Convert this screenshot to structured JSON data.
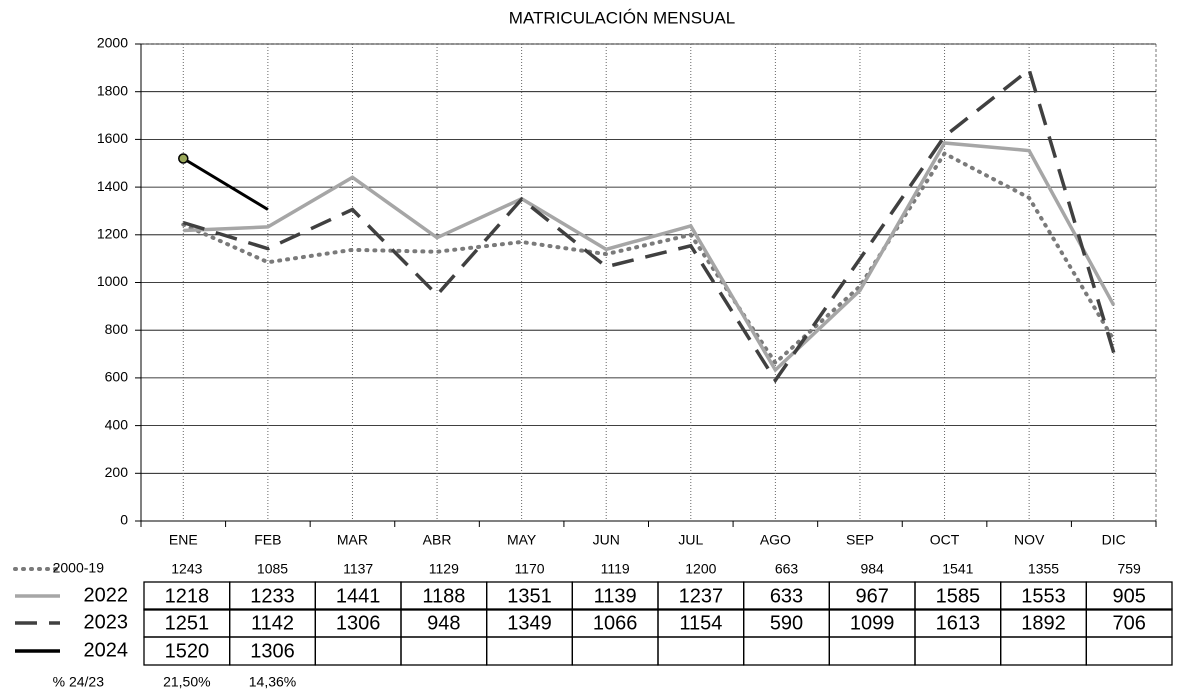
{
  "chart_data": {
    "type": "line",
    "title": "MATRICULACIÓN MENSUAL",
    "categories": [
      "ENE",
      "FEB",
      "MAR",
      "ABR",
      "MAY",
      "JUN",
      "JUL",
      "AGO",
      "SEP",
      "OCT",
      "NOV",
      "DIC"
    ],
    "series": [
      {
        "name": "2000-19",
        "color": "#7a7a7a",
        "style": "dotted",
        "in_table": false,
        "values": [
          1243,
          1085,
          1137,
          1129,
          1170,
          1119,
          1200,
          663,
          984,
          1541,
          1355,
          759
        ]
      },
      {
        "name": "2022",
        "color": "#a6a6a6",
        "style": "solid",
        "in_table": true,
        "values": [
          1218,
          1233,
          1441,
          1188,
          1351,
          1139,
          1237,
          633,
          967,
          1585,
          1553,
          905
        ]
      },
      {
        "name": "2023",
        "color": "#404040",
        "style": "dashed",
        "in_table": true,
        "values": [
          1251,
          1142,
          1306,
          948,
          1349,
          1066,
          1154,
          590,
          1099,
          1613,
          1892,
          706
        ]
      },
      {
        "name": "2024",
        "color": "#000000",
        "style": "solid",
        "in_table": true,
        "marker": "first",
        "values": [
          1520,
          1306,
          null,
          null,
          null,
          null,
          null,
          null,
          null,
          null,
          null,
          null
        ]
      }
    ],
    "ratio_row": {
      "label": "% 24/23",
      "values": [
        "21,50%",
        "14,36%"
      ]
    },
    "ylim": [
      0,
      2000
    ],
    "yticks": [
      0,
      200,
      400,
      600,
      800,
      1000,
      1200,
      1400,
      1600,
      1800,
      2000
    ],
    "grid": true
  }
}
